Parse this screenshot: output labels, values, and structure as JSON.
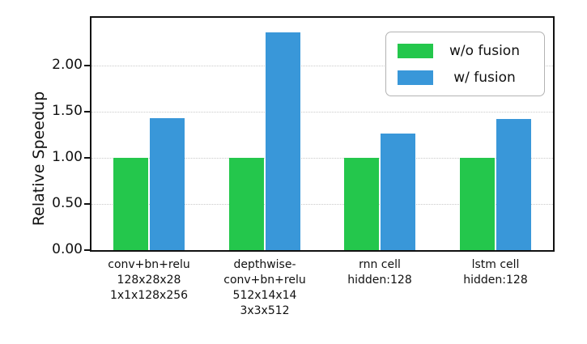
{
  "chart_data": {
    "type": "bar",
    "title": "",
    "xlabel": "",
    "ylabel": "Relative Speedup",
    "categories": [
      [
        "conv+bn+relu",
        "128x28x28",
        "1x1x128x256"
      ],
      [
        "depthwise-",
        "conv+bn+relu",
        "512x14x14",
        "3x3x512"
      ],
      [
        "rnn cell",
        "hidden:128"
      ],
      [
        "lstm cell",
        "hidden:128"
      ]
    ],
    "series": [
      {
        "name": "w/o fusion",
        "color": "#24c74c",
        "values": [
          1.0,
          1.0,
          1.0,
          1.0
        ]
      },
      {
        "name": "w/ fusion",
        "color": "#3997d9",
        "values": [
          1.43,
          2.36,
          1.26,
          1.42
        ]
      }
    ],
    "ytick_labels": [
      "0.00",
      "0.50",
      "1.00",
      "1.50",
      "2.00"
    ],
    "ytick_values": [
      0,
      0.5,
      1.0,
      1.5,
      2.0
    ],
    "ylim": [
      0,
      2.52
    ],
    "grid": "horizontal-dotted",
    "legend_position": "upper-right",
    "legend_entries": [
      "w/o fusion",
      "w/ fusion"
    ]
  }
}
